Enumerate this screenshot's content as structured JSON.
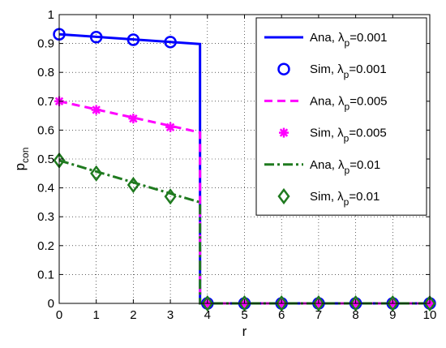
{
  "chart_data": {
    "type": "line",
    "title": "",
    "xlabel": "r",
    "ylabel_main": "p",
    "ylabel_sub": "con",
    "xlim": [
      0,
      10
    ],
    "ylim": [
      0,
      1
    ],
    "grid": true,
    "legend_placement": "top-right",
    "x_ticks": [
      "0",
      "1",
      "2",
      "3",
      "4",
      "5",
      "6",
      "7",
      "8",
      "9",
      "10"
    ],
    "y_ticks": [
      "0",
      "0.1",
      "0.2",
      "0.3",
      "0.4",
      "0.5",
      "0.6",
      "0.7",
      "0.8",
      "0.9",
      "1"
    ],
    "cutoff_r": 3.8,
    "analytic": [
      {
        "legend_main": "Ana, λ",
        "legend_sub": "p",
        "legend_tail": "=0.001",
        "color": "#0000ff",
        "style": "solid",
        "start": 0.932,
        "end": 0.898
      },
      {
        "legend_main": "Ana, λ",
        "legend_sub": "p",
        "legend_tail": "=0.005",
        "color": "#ff00ff",
        "style": "dashed",
        "start": 0.7,
        "end": 0.592
      },
      {
        "legend_main": "Ana, λ",
        "legend_sub": "p",
        "legend_tail": "=0.01",
        "color": "#1f7a1f",
        "style": "dashdot",
        "start": 0.495,
        "end": 0.35
      }
    ],
    "simulation": [
      {
        "legend_main": "Sim, λ",
        "legend_sub": "p",
        "legend_tail": "=0.001",
        "color": "#0000ff",
        "marker": "circle",
        "x": [
          0,
          1,
          2,
          3,
          4,
          5,
          6,
          7,
          8,
          9,
          10
        ],
        "y": [
          0.932,
          0.922,
          0.913,
          0.905,
          0,
          0,
          0,
          0,
          0,
          0,
          0
        ]
      },
      {
        "legend_main": "Sim, λ",
        "legend_sub": "p",
        "legend_tail": "=0.005",
        "color": "#ff00ff",
        "marker": "star",
        "x": [
          0,
          1,
          2,
          3,
          4,
          5,
          6,
          7,
          8,
          9,
          10
        ],
        "y": [
          0.7,
          0.67,
          0.64,
          0.61,
          0,
          0,
          0,
          0,
          0,
          0,
          0
        ]
      },
      {
        "legend_main": "Sim, λ",
        "legend_sub": "p",
        "legend_tail": "=0.01",
        "color": "#1f7a1f",
        "marker": "diamond",
        "x": [
          0,
          1,
          2,
          3,
          4,
          5,
          6,
          7,
          8,
          9,
          10
        ],
        "y": [
          0.495,
          0.45,
          0.41,
          0.37,
          0,
          0,
          0,
          0,
          0,
          0,
          0
        ]
      }
    ]
  }
}
